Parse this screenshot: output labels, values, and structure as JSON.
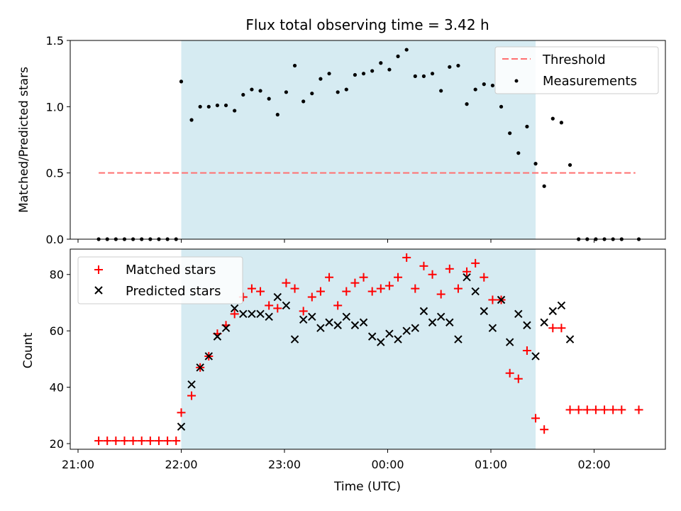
{
  "chart_data": [
    {
      "type": "scatter",
      "title": "Flux total observing time = 3.42 h",
      "ylabel": "Matched/Predicted stars",
      "xlabel": "",
      "ylim": [
        0,
        1.5
      ],
      "yticks": [
        "0.0",
        "0.5",
        "1.0",
        "1.5"
      ],
      "xlim": [
        "21:00",
        "02:40"
      ],
      "shaded_interval": [
        "22:00",
        "01:26"
      ],
      "shade_color": "#add8e6",
      "legend": {
        "placement": "upper right",
        "entries": [
          "Threshold",
          "Measurements"
        ]
      },
      "threshold": {
        "name": "Threshold",
        "value": 0.5,
        "x_range": [
          "21:12",
          "02:24"
        ],
        "color": "#ff7070",
        "style": "dashed"
      },
      "series": [
        {
          "name": "Measurements",
          "marker": "dot",
          "color": "#000000",
          "points": [
            [
              "21:12",
              0
            ],
            [
              "21:17",
              0
            ],
            [
              "21:22",
              0
            ],
            [
              "21:27",
              0
            ],
            [
              "21:32",
              0
            ],
            [
              "21:37",
              0
            ],
            [
              "21:42",
              0
            ],
            [
              "21:47",
              0
            ],
            [
              "21:52",
              0
            ],
            [
              "21:57",
              0
            ],
            [
              "22:00",
              1.19
            ],
            [
              "22:06",
              0.9
            ],
            [
              "22:11",
              1.0
            ],
            [
              "22:16",
              1.0
            ],
            [
              "22:21",
              1.01
            ],
            [
              "22:26",
              1.01
            ],
            [
              "22:31",
              0.97
            ],
            [
              "22:36",
              1.09
            ],
            [
              "22:41",
              1.13
            ],
            [
              "22:46",
              1.12
            ],
            [
              "22:51",
              1.06
            ],
            [
              "22:56",
              0.94
            ],
            [
              "23:01",
              1.11
            ],
            [
              "23:06",
              1.31
            ],
            [
              "23:11",
              1.04
            ],
            [
              "23:16",
              1.1
            ],
            [
              "23:21",
              1.21
            ],
            [
              "23:26",
              1.25
            ],
            [
              "23:31",
              1.11
            ],
            [
              "23:36",
              1.13
            ],
            [
              "23:41",
              1.24
            ],
            [
              "23:46",
              1.25
            ],
            [
              "23:51",
              1.27
            ],
            [
              "23:56",
              1.33
            ],
            [
              "00:01",
              1.28
            ],
            [
              "00:06",
              1.38
            ],
            [
              "00:11",
              1.43
            ],
            [
              "00:16",
              1.23
            ],
            [
              "00:21",
              1.23
            ],
            [
              "00:26",
              1.25
            ],
            [
              "00:31",
              1.12
            ],
            [
              "00:36",
              1.3
            ],
            [
              "00:41",
              1.31
            ],
            [
              "00:46",
              1.02
            ],
            [
              "00:51",
              1.13
            ],
            [
              "00:56",
              1.17
            ],
            [
              "01:01",
              1.16
            ],
            [
              "01:06",
              1.0
            ],
            [
              "01:11",
              0.8
            ],
            [
              "01:16",
              0.65
            ],
            [
              "01:21",
              0.85
            ],
            [
              "01:26",
              0.57
            ],
            [
              "01:31",
              0.4
            ],
            [
              "01:36",
              0.91
            ],
            [
              "01:41",
              0.88
            ],
            [
              "01:46",
              0.56
            ],
            [
              "01:51",
              0
            ],
            [
              "01:56",
              0
            ],
            [
              "02:01",
              0
            ],
            [
              "02:06",
              0
            ],
            [
              "02:11",
              0
            ],
            [
              "02:16",
              0
            ],
            [
              "02:26",
              0
            ]
          ]
        }
      ]
    },
    {
      "type": "scatter",
      "title": "",
      "ylabel": "Count",
      "xlabel": "Time (UTC)",
      "ylim": [
        18,
        89
      ],
      "yticks": [
        "20",
        "40",
        "60",
        "80"
      ],
      "xlim": [
        "21:00",
        "02:40"
      ],
      "xticks": [
        "21:00",
        "22:00",
        "23:00",
        "00:00",
        "01:00",
        "02:00"
      ],
      "shaded_interval": [
        "22:00",
        "01:26"
      ],
      "shade_color": "#add8e6",
      "legend": {
        "placement": "upper left",
        "entries": [
          "Matched stars",
          "Predicted stars"
        ]
      },
      "series": [
        {
          "name": "Matched stars",
          "marker": "plus",
          "color": "#ff0000",
          "points": [
            [
              "21:12",
              21
            ],
            [
              "21:17",
              21
            ],
            [
              "21:22",
              21
            ],
            [
              "21:27",
              21
            ],
            [
              "21:32",
              21
            ],
            [
              "21:37",
              21
            ],
            [
              "21:42",
              21
            ],
            [
              "21:47",
              21
            ],
            [
              "21:52",
              21
            ],
            [
              "21:57",
              21
            ],
            [
              "22:00",
              31
            ],
            [
              "22:06",
              37
            ],
            [
              "22:11",
              47
            ],
            [
              "22:16",
              51
            ],
            [
              "22:21",
              59
            ],
            [
              "22:26",
              62
            ],
            [
              "22:31",
              66
            ],
            [
              "22:36",
              72
            ],
            [
              "22:41",
              75
            ],
            [
              "22:46",
              74
            ],
            [
              "22:51",
              69
            ],
            [
              "22:56",
              68
            ],
            [
              "23:01",
              77
            ],
            [
              "23:06",
              75
            ],
            [
              "23:11",
              67
            ],
            [
              "23:16",
              72
            ],
            [
              "23:21",
              74
            ],
            [
              "23:26",
              79
            ],
            [
              "23:31",
              69
            ],
            [
              "23:36",
              74
            ],
            [
              "23:41",
              77
            ],
            [
              "23:46",
              79
            ],
            [
              "23:51",
              74
            ],
            [
              "23:56",
              75
            ],
            [
              "00:01",
              76
            ],
            [
              "00:06",
              79
            ],
            [
              "00:11",
              86
            ],
            [
              "00:16",
              75
            ],
            [
              "00:21",
              83
            ],
            [
              "00:26",
              80
            ],
            [
              "00:31",
              73
            ],
            [
              "00:36",
              82
            ],
            [
              "00:41",
              75
            ],
            [
              "00:46",
              81
            ],
            [
              "00:51",
              84
            ],
            [
              "00:56",
              79
            ],
            [
              "01:01",
              71
            ],
            [
              "01:06",
              71
            ],
            [
              "01:11",
              45
            ],
            [
              "01:16",
              43
            ],
            [
              "01:21",
              53
            ],
            [
              "01:26",
              29
            ],
            [
              "01:31",
              25
            ],
            [
              "01:36",
              61
            ],
            [
              "01:41",
              61
            ],
            [
              "01:46",
              32
            ],
            [
              "01:51",
              32
            ],
            [
              "01:56",
              32
            ],
            [
              "02:01",
              32
            ],
            [
              "02:06",
              32
            ],
            [
              "02:11",
              32
            ],
            [
              "02:16",
              32
            ],
            [
              "02:26",
              32
            ]
          ]
        },
        {
          "name": "Predicted stars",
          "marker": "x",
          "color": "#000000",
          "points": [
            [
              "22:00",
              26
            ],
            [
              "22:06",
              41
            ],
            [
              "22:11",
              47
            ],
            [
              "22:16",
              51
            ],
            [
              "22:21",
              58
            ],
            [
              "22:26",
              61
            ],
            [
              "22:31",
              68
            ],
            [
              "22:36",
              66
            ],
            [
              "22:41",
              66
            ],
            [
              "22:46",
              66
            ],
            [
              "22:51",
              65
            ],
            [
              "22:56",
              72
            ],
            [
              "23:01",
              69
            ],
            [
              "23:06",
              57
            ],
            [
              "23:11",
              64
            ],
            [
              "23:16",
              65
            ],
            [
              "23:21",
              61
            ],
            [
              "23:26",
              63
            ],
            [
              "23:31",
              62
            ],
            [
              "23:36",
              65
            ],
            [
              "23:41",
              62
            ],
            [
              "23:46",
              63
            ],
            [
              "23:51",
              58
            ],
            [
              "23:56",
              56
            ],
            [
              "00:01",
              59
            ],
            [
              "00:06",
              57
            ],
            [
              "00:11",
              60
            ],
            [
              "00:16",
              61
            ],
            [
              "00:21",
              67
            ],
            [
              "00:26",
              63
            ],
            [
              "00:31",
              65
            ],
            [
              "00:36",
              63
            ],
            [
              "00:41",
              57
            ],
            [
              "00:46",
              79
            ],
            [
              "00:51",
              74
            ],
            [
              "00:56",
              67
            ],
            [
              "01:01",
              61
            ],
            [
              "01:06",
              71
            ],
            [
              "01:11",
              56
            ],
            [
              "01:16",
              66
            ],
            [
              "01:21",
              62
            ],
            [
              "01:26",
              51
            ],
            [
              "01:31",
              63
            ],
            [
              "01:36",
              67
            ],
            [
              "01:41",
              69
            ],
            [
              "01:46",
              57
            ]
          ]
        }
      ]
    }
  ]
}
